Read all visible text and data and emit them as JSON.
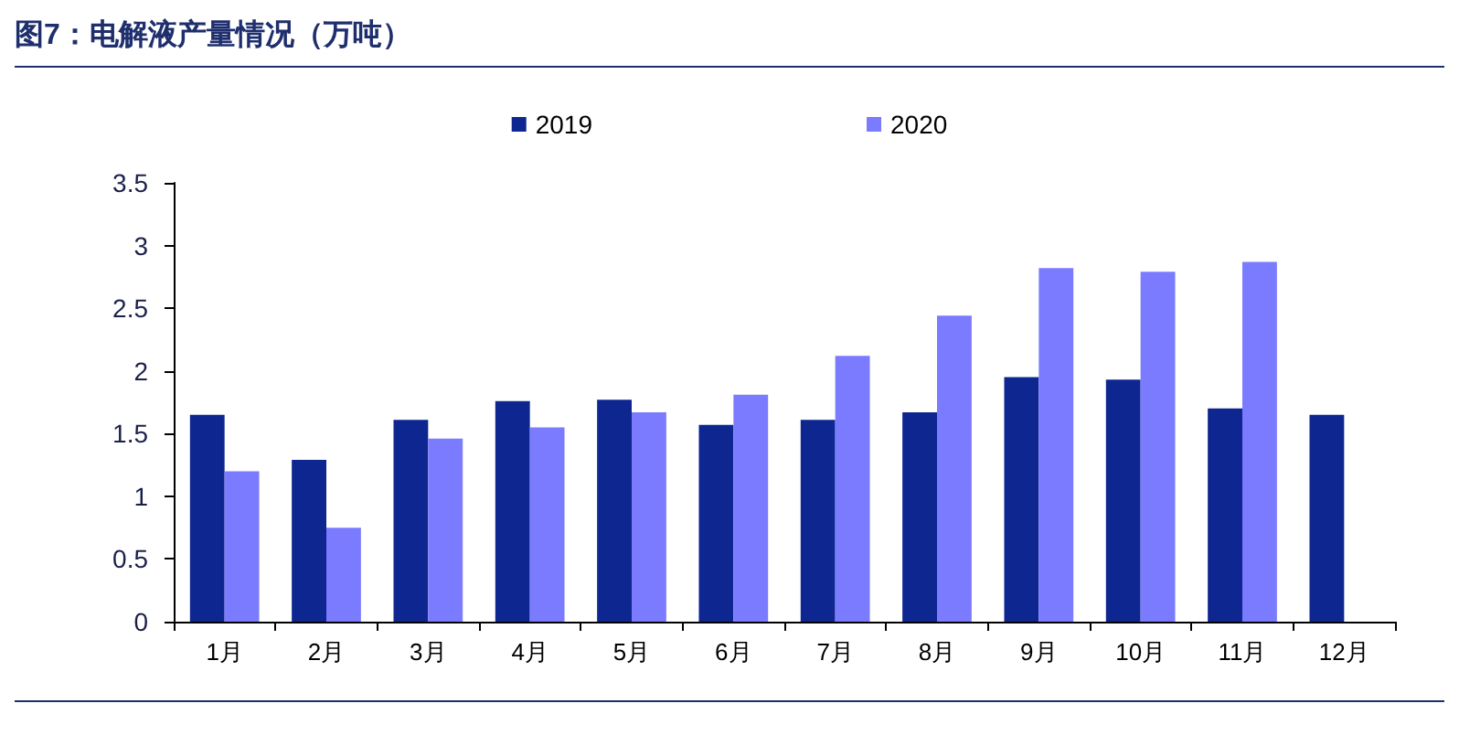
{
  "chart_data": {
    "type": "bar",
    "title": "图7：电解液产量情况（万吨）",
    "categories": [
      "1月",
      "2月",
      "3月",
      "4月",
      "5月",
      "6月",
      "7月",
      "8月",
      "9月",
      "10月",
      "11月",
      "12月"
    ],
    "series": [
      {
        "name": "2019",
        "color": "#0e2690",
        "values": [
          1.65,
          1.29,
          1.61,
          1.76,
          1.77,
          1.57,
          1.61,
          1.67,
          1.95,
          1.93,
          1.7,
          1.65
        ]
      },
      {
        "name": "2020",
        "color": "#7b7bff",
        "values": [
          1.2,
          0.75,
          1.46,
          1.55,
          1.67,
          1.81,
          2.12,
          2.44,
          2.82,
          2.79,
          2.87,
          null
        ]
      }
    ],
    "ylim": [
      0,
      3.5
    ],
    "yticks": [
      0,
      0.5,
      1,
      1.5,
      2,
      2.5,
      3,
      3.5
    ],
    "grid": false,
    "legend": "top"
  }
}
